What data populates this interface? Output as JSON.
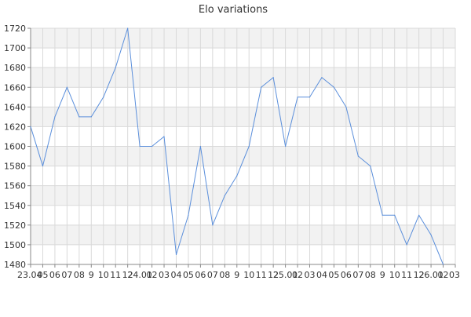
{
  "chart_data": {
    "type": "line",
    "title": "Elo variations",
    "xlabel": "",
    "ylabel": "",
    "ylim": [
      1480,
      1720
    ],
    "y_ticks": [
      1480,
      1500,
      1520,
      1540,
      1560,
      1580,
      1600,
      1620,
      1640,
      1660,
      1680,
      1700,
      1720
    ],
    "grid": true,
    "x_tick_labels": [
      "23.04",
      "05",
      "06",
      "07",
      "08",
      "9",
      "10",
      "11",
      "12",
      "24.01",
      "02",
      "03",
      "04",
      "05",
      "06",
      "07",
      "08",
      "9",
      "10",
      "11",
      "12",
      "25.01",
      "02",
      "03",
      "04",
      "05",
      "06",
      "07",
      "08",
      "9",
      "10",
      "11",
      "12",
      "26.01",
      "02",
      "03"
    ],
    "series": [
      {
        "values": [
          1620,
          1580,
          1630,
          1660,
          1630,
          1630,
          1650,
          1680,
          1720,
          1600,
          1600,
          1610,
          1490,
          1530,
          1600,
          1520,
          1550,
          1570,
          1600,
          1660,
          1670,
          1600,
          1650,
          1650,
          1670,
          1660,
          1640,
          1590,
          1580,
          1530,
          1530,
          1500,
          1530,
          1510,
          1480
        ]
      }
    ],
    "colors": {
      "line": "#5b8fdb",
      "band": "#f2f2f2",
      "grid": "#d9d9d9",
      "axis": "#888888"
    }
  }
}
